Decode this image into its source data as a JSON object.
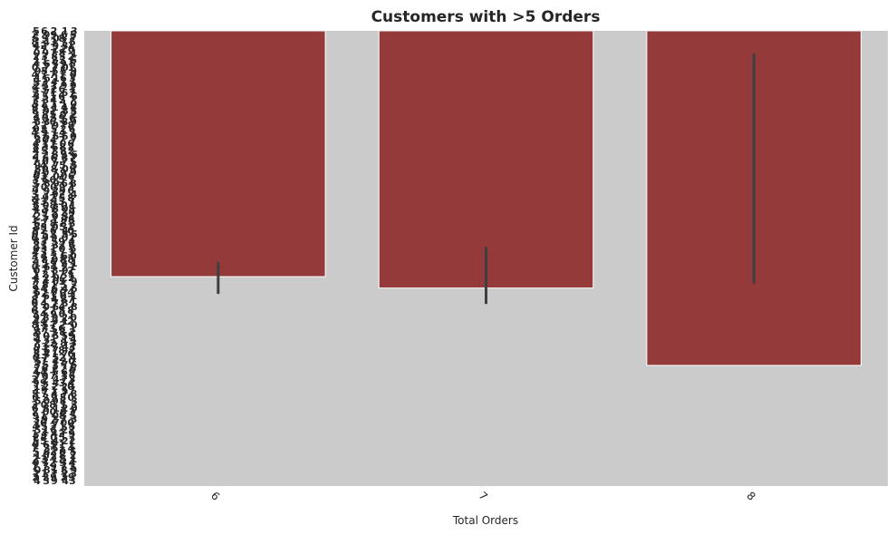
{
  "chart_data": {
    "type": "bar",
    "title": "Customers with >5 Orders",
    "xlabel": "Total Orders",
    "ylabel": "Customer Id",
    "categories": [
      "6",
      "7",
      "8"
    ],
    "values": [
      0.54,
      0.565,
      0.735
    ],
    "error_low": [
      0.508,
      0.475,
      0.05
    ],
    "error_high": [
      0.578,
      0.6,
      0.555
    ],
    "ylim": [
      1.0,
      0.0
    ],
    "y_axis_inverted": true,
    "y_tick_labels_legible": false,
    "tick_label_rotation": 45,
    "grid": false,
    "colors": {
      "bar": "#943a3a",
      "bar_edge": "#ffffff",
      "plot_bg": "#cbcbcb",
      "errorbar": "#3f3f3f",
      "text": "#262626"
    }
  }
}
